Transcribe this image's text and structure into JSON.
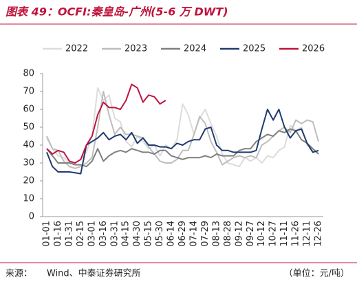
{
  "chart_data": {
    "type": "line",
    "title": "图表 49：OCFI:秦皇岛-广州(5-6 万 DWT)",
    "categories": [
      "01-01",
      null,
      "01-16",
      null,
      "01-31",
      null,
      "02-15",
      null,
      "03-01",
      null,
      "03-16",
      null,
      "03-31",
      null,
      "04-15",
      null,
      "04-30",
      null,
      "05-15",
      null,
      "05-30",
      null,
      "06-14",
      null,
      "06-29",
      null,
      "07-14",
      null,
      "07-29",
      null,
      "08-13",
      null,
      "08-28",
      null,
      "09-12",
      null,
      "09-27",
      null,
      "10-12",
      null,
      "10-27",
      null,
      "11-11",
      null,
      "11-26",
      null,
      "12-11",
      null,
      "12-26"
    ],
    "series": [
      {
        "name": "2022",
        "color": "#dcdcdc",
        "values": [
          44,
          38,
          34,
          33,
          30,
          30,
          32,
          36,
          45,
          72,
          65,
          68,
          55,
          53,
          42,
          39,
          45,
          42,
          38,
          40,
          34,
          40,
          38,
          43,
          63,
          57,
          46,
          55,
          60,
          52,
          45,
          35,
          30,
          29,
          28,
          33,
          31,
          33,
          30,
          34,
          33,
          37,
          39,
          51,
          48,
          50,
          40,
          37,
          36
        ]
      },
      {
        "name": "2023",
        "color": "#bdbdbd",
        "values": [
          45,
          38,
          37,
          31,
          28,
          27,
          28,
          30,
          33,
          50,
          70,
          57,
          46,
          50,
          46,
          46,
          45,
          44,
          39,
          35,
          31,
          30,
          30,
          32,
          37,
          37,
          46,
          56,
          52,
          42,
          36,
          29,
          31,
          33,
          34,
          33,
          34,
          33,
          40,
          42,
          45,
          48,
          50,
          47,
          54,
          52,
          54,
          53,
          42
        ]
      },
      {
        "name": "2024",
        "color": "#7f7f7f",
        "values": [
          38,
          34,
          30,
          30,
          30,
          29,
          29,
          28,
          31,
          38,
          31,
          34,
          36,
          37,
          36,
          38,
          37,
          36,
          36,
          35,
          37,
          37,
          34,
          33,
          32,
          33,
          33,
          33,
          34,
          33,
          35,
          34,
          34,
          34,
          37,
          38,
          38,
          42,
          44,
          46,
          45,
          48,
          47,
          49,
          48,
          43,
          41,
          38,
          35
        ]
      },
      {
        "name": "2025",
        "color": "#1f3a70",
        "values": [
          36,
          28,
          25,
          25,
          25,
          24.5,
          24,
          40,
          42,
          44,
          47,
          43,
          45,
          46,
          43,
          47,
          41,
          44,
          40,
          40,
          39,
          39,
          38,
          41,
          40,
          42,
          43,
          43,
          49,
          50,
          40,
          37,
          37,
          36,
          36,
          36,
          36,
          37,
          49,
          60,
          54,
          60,
          50,
          44,
          48,
          49,
          41,
          36,
          37
        ]
      },
      {
        "name": "2026",
        "color": "#c0143c",
        "values": [
          38,
          35,
          37,
          36,
          31,
          30,
          32,
          40,
          45,
          57,
          64,
          61,
          61,
          60,
          65,
          74,
          72,
          64,
          68,
          67,
          63,
          65,
          null,
          null,
          null,
          null,
          null,
          null,
          null,
          null,
          null,
          null,
          null,
          null,
          null,
          null,
          null,
          null,
          null,
          null,
          null,
          null,
          null,
          null,
          null,
          null,
          null,
          null,
          null
        ]
      }
    ],
    "ylim": [
      0,
      80
    ],
    "yticks": [
      0,
      10,
      20,
      30,
      40,
      50,
      60,
      70,
      80
    ],
    "source_label": "来源：",
    "source": "Wind、中泰证券研究所",
    "unit": "（单位：元/吨）"
  }
}
